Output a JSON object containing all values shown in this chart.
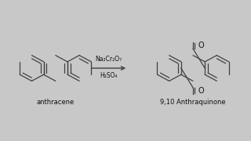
{
  "bg_color": "#c8c8c8",
  "inner_bg": "#e8e8e8",
  "line_color": "#404040",
  "text_color": "#111111",
  "arrow_label_top": "Na₂Cr₂O₇",
  "arrow_label_bot": "H₂SO₄",
  "label_left": "anthracene",
  "label_right": "9,10 Anthraquinone",
  "label_fontsize": 6,
  "reagent_fontsize": 5.5
}
